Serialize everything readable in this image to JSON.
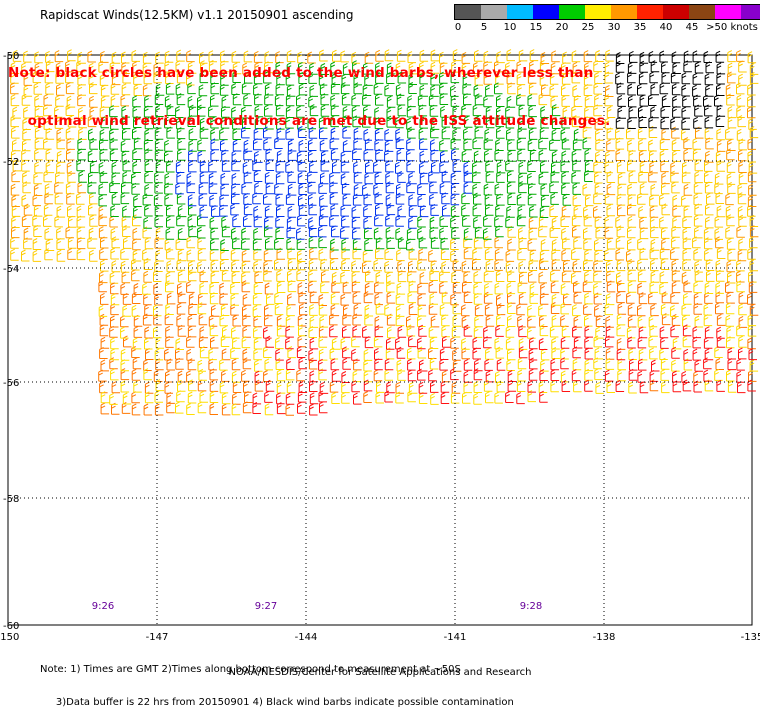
{
  "title": "Rapidscat Winds(12.5KM) v1.1 20150901 ascending",
  "note_lines": [
    "Note: black circles have been added to the wind barbs, wherever less than",
    "    optimal wind retrieval conditions are met due to the ISS attitude changes."
  ],
  "legend": {
    "labels": [
      "0",
      "5",
      "10",
      "15",
      "20",
      "25",
      "30",
      "35",
      "40",
      "45",
      ">50 knots"
    ],
    "colors": [
      "#555555",
      "#aaaaaa",
      "#00bbff",
      "#0000ff",
      "#00cc00",
      "#ffee00",
      "#ff9900",
      "#ff2200",
      "#cc0000",
      "#8b4513",
      "#ff00ff",
      "#8800cc",
      "#330066"
    ]
  },
  "axes": {
    "lat_ticks": [
      "-50",
      "-52",
      "-54",
      "-56",
      "-58",
      "-60"
    ],
    "lon_ticks": [
      "-150",
      "-147",
      "-144",
      "-141",
      "-138",
      "-135"
    ]
  },
  "time_labels": [
    "9:26",
    "9:27",
    "9:28"
  ],
  "footnote_lines": [
    "Note: 1) Times are GMT 2)Times along bottom correspond to measurement at ~50S",
    "     3)Data buffer is 22 hrs from 20150901 4) Black wind barbs indicate possible contamination"
  ],
  "credit": "NOAA/NESDIS/Center for Satellite Applications and Research"
}
